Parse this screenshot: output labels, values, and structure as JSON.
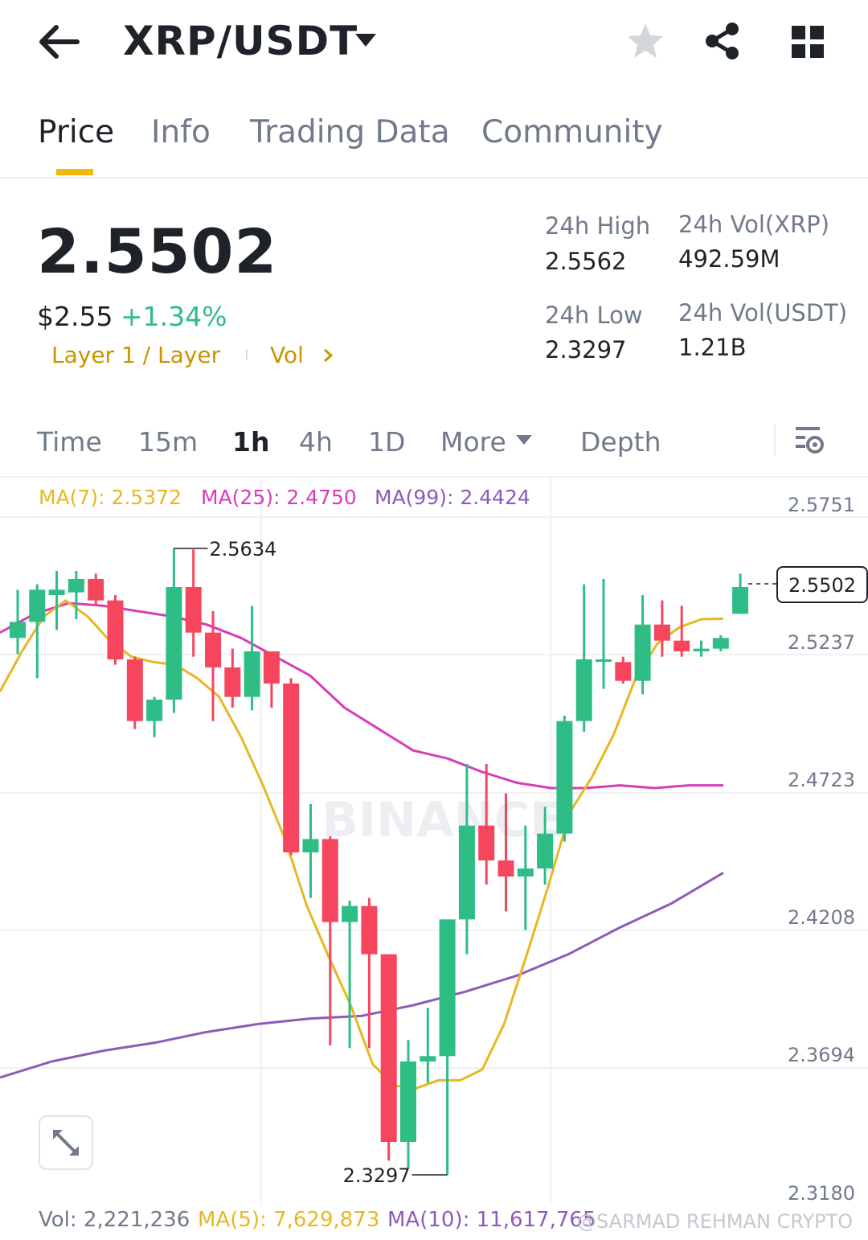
{
  "header": {
    "back_icon": "arrow-left-icon",
    "pair": "XRP/USDT",
    "dropdown_icon": "caret-down-icon",
    "favorite_icon": "star-icon",
    "share_icon": "share-icon",
    "grid_icon": "grid-icon"
  },
  "tabs": [
    "Price",
    "Info",
    "Trading Data",
    "Community"
  ],
  "active_tab": "Price",
  "ticker": {
    "last_price": "2.5502",
    "usd_price": "$2.55",
    "change_pct": "+1.34%",
    "tag_layer": "Layer 1 / Layer",
    "tag_vol": "Vol",
    "high_label": "24h High",
    "high_value": "2.5562",
    "low_label": "24h Low",
    "low_value": "2.3297",
    "vol_xrp_label": "24h Vol(XRP)",
    "vol_xrp_value": "492.59M",
    "vol_usdt_label": "24h Vol(USDT)",
    "vol_usdt_value": "1.21B"
  },
  "intervals": [
    "Time",
    "15m",
    "1h",
    "4h",
    "1D",
    "More",
    "Depth"
  ],
  "active_interval": "1h",
  "indicators": {
    "ma7": "MA(7): 2.5372",
    "ma25": "MA(25): 2.4750",
    "ma99": "MA(99): 2.4424"
  },
  "volume": {
    "vol": "Vol: 2,221,236",
    "ma5": "MA(5): 7,629,873",
    "ma10": "MA(10): 11,617,765"
  },
  "watermark": "@SARMAD REHMAN CRYPTO",
  "colors": {
    "up": "#2ebd85",
    "down": "#f6465d",
    "ma7": "#e8b722",
    "ma25": "#d63db8",
    "ma99": "#8e5bb8",
    "accent": "#f0b90b"
  },
  "chart_data": {
    "type": "candlestick",
    "y_ticks": [
      "2.5751",
      "2.5237",
      "2.4723",
      "2.4208",
      "2.3694",
      "2.3180"
    ],
    "ylim": [
      2.318,
      2.5751
    ],
    "current_price_label": "2.5502",
    "current_price": 2.5502,
    "high_marker": "2.5634",
    "high_marker_value": 2.5634,
    "low_marker": "2.3297",
    "low_marker_value": 2.3297,
    "candles": [
      {
        "o": 2.53,
        "h": 2.548,
        "l": 2.524,
        "c": 2.536
      },
      {
        "o": 2.536,
        "h": 2.55,
        "l": 2.515,
        "c": 2.548
      },
      {
        "o": 2.546,
        "h": 2.555,
        "l": 2.533,
        "c": 2.548
      },
      {
        "o": 2.547,
        "h": 2.555,
        "l": 2.537,
        "c": 2.552
      },
      {
        "o": 2.552,
        "h": 2.554,
        "l": 2.542,
        "c": 2.544
      },
      {
        "o": 2.544,
        "h": 2.546,
        "l": 2.52,
        "c": 2.522
      },
      {
        "o": 2.522,
        "h": 2.523,
        "l": 2.496,
        "c": 2.499
      },
      {
        "o": 2.499,
        "h": 2.508,
        "l": 2.493,
        "c": 2.507
      },
      {
        "o": 2.507,
        "h": 2.5634,
        "l": 2.502,
        "c": 2.549
      },
      {
        "o": 2.549,
        "h": 2.563,
        "l": 2.523,
        "c": 2.532
      },
      {
        "o": 2.532,
        "h": 2.54,
        "l": 2.499,
        "c": 2.519
      },
      {
        "o": 2.519,
        "h": 2.526,
        "l": 2.504,
        "c": 2.508
      },
      {
        "o": 2.508,
        "h": 2.542,
        "l": 2.503,
        "c": 2.525
      },
      {
        "o": 2.525,
        "h": 2.525,
        "l": 2.504,
        "c": 2.513
      },
      {
        "o": 2.513,
        "h": 2.515,
        "l": 2.449,
        "c": 2.45
      },
      {
        "o": 2.45,
        "h": 2.468,
        "l": 2.433,
        "c": 2.455
      },
      {
        "o": 2.455,
        "h": 2.456,
        "l": 2.378,
        "c": 2.424
      },
      {
        "o": 2.424,
        "h": 2.432,
        "l": 2.377,
        "c": 2.43
      },
      {
        "o": 2.43,
        "h": 2.433,
        "l": 2.377,
        "c": 2.412
      },
      {
        "o": 2.412,
        "h": 2.412,
        "l": 2.335,
        "c": 2.342
      },
      {
        "o": 2.342,
        "h": 2.38,
        "l": 2.332,
        "c": 2.372
      },
      {
        "o": 2.372,
        "h": 2.392,
        "l": 2.364,
        "c": 2.374
      },
      {
        "o": 2.374,
        "h": 2.425,
        "l": 2.3297,
        "c": 2.425
      },
      {
        "o": 2.425,
        "h": 2.483,
        "l": 2.412,
        "c": 2.46
      },
      {
        "o": 2.46,
        "h": 2.483,
        "l": 2.438,
        "c": 2.447
      },
      {
        "o": 2.447,
        "h": 2.472,
        "l": 2.428,
        "c": 2.441
      },
      {
        "o": 2.441,
        "h": 2.46,
        "l": 2.421,
        "c": 2.444
      },
      {
        "o": 2.444,
        "h": 2.467,
        "l": 2.438,
        "c": 2.457
      },
      {
        "o": 2.457,
        "h": 2.501,
        "l": 2.454,
        "c": 2.499
      },
      {
        "o": 2.499,
        "h": 2.55,
        "l": 2.495,
        "c": 2.522
      },
      {
        "o": 2.522,
        "h": 2.552,
        "l": 2.511,
        "c": 2.522
      },
      {
        "o": 2.521,
        "h": 2.523,
        "l": 2.513,
        "c": 2.514
      },
      {
        "o": 2.514,
        "h": 2.546,
        "l": 2.509,
        "c": 2.535
      },
      {
        "o": 2.535,
        "h": 2.544,
        "l": 2.523,
        "c": 2.529
      },
      {
        "o": 2.529,
        "h": 2.542,
        "l": 2.523,
        "c": 2.525
      },
      {
        "o": 2.525,
        "h": 2.529,
        "l": 2.523,
        "c": 2.526
      },
      {
        "o": 2.526,
        "h": 2.531,
        "l": 2.525,
        "c": 2.53
      },
      {
        "o": 2.539,
        "h": 2.554,
        "l": 2.539,
        "c": 2.549
      }
    ],
    "ma7_series": [
      2.51,
      2.525,
      2.538,
      2.544,
      2.538,
      2.529,
      2.523,
      2.521,
      2.52,
      2.515,
      2.508,
      2.493,
      2.475,
      2.455,
      2.43,
      2.411,
      2.393,
      2.371,
      2.363,
      2.362,
      2.365,
      2.365,
      2.369,
      2.386,
      2.411,
      2.437,
      2.465,
      2.478,
      2.494,
      2.515,
      2.528,
      2.534,
      2.537,
      2.5372
    ],
    "ma25_series": [
      2.532,
      2.539,
      2.543,
      2.542,
      2.54,
      2.538,
      2.535,
      2.53,
      2.523,
      2.516,
      2.504,
      2.496,
      2.488,
      2.485,
      2.48,
      2.476,
      2.474,
      2.474,
      2.475,
      2.474,
      2.475,
      2.475
    ],
    "ma99_series": [
      2.366,
      2.372,
      2.376,
      2.379,
      2.383,
      2.386,
      2.388,
      2.389,
      2.393,
      2.398,
      2.404,
      2.412,
      2.422,
      2.431,
      2.4424
    ]
  }
}
